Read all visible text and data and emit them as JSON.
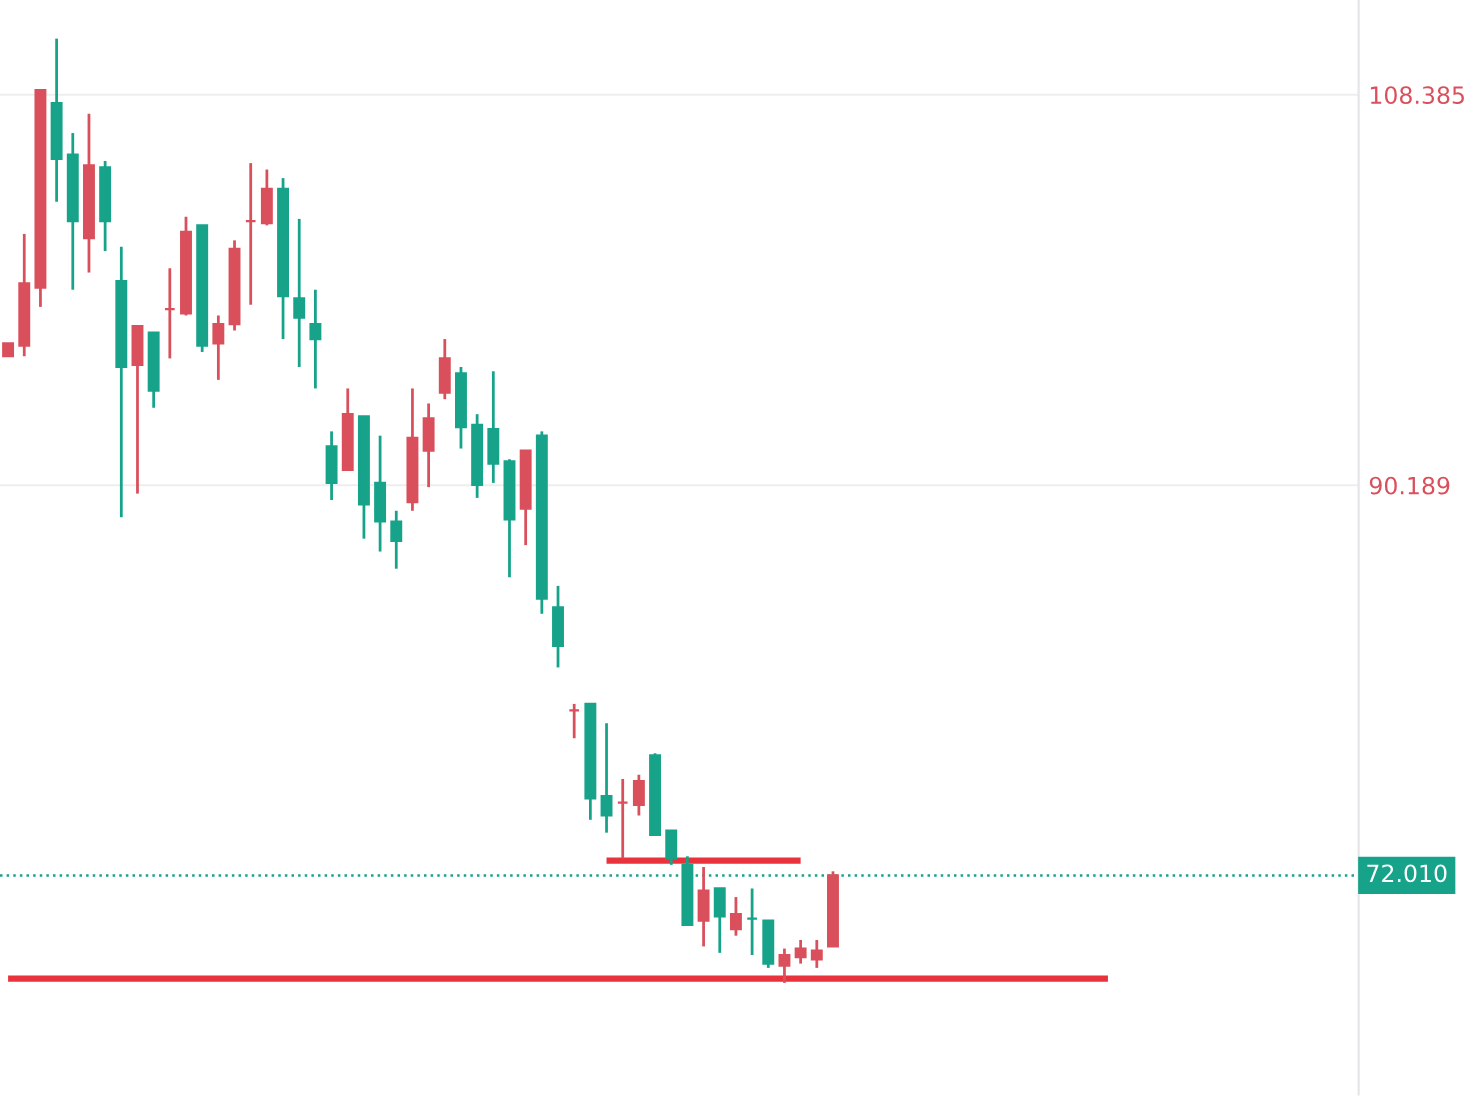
{
  "chart_data": {
    "type": "candlestick",
    "categories": [
      null,
      null,
      null,
      null,
      null,
      null,
      null,
      null,
      null,
      null,
      null,
      null,
      null,
      null,
      null,
      null,
      null,
      null,
      null,
      null,
      null,
      null,
      null,
      null,
      null,
      null,
      null,
      null,
      null,
      null,
      null,
      null,
      null,
      null,
      null,
      null,
      null,
      null,
      null,
      null,
      null,
      null,
      null,
      null,
      null,
      null,
      null,
      null,
      null,
      null,
      null,
      null,
      null,
      null,
      null,
      null,
      null,
      null,
      null,
      null,
      null,
      null,
      null,
      null,
      null,
      null,
      null,
      null,
      null,
      null,
      null,
      null,
      null,
      null,
      null,
      null,
      null,
      null,
      null,
      null,
      null,
      null,
      null,
      null
    ],
    "ohlc": [
      [
        96.2,
        96.8,
        96.2,
        96.8
      ],
      [
        96.7,
        101.9,
        96.2,
        99.6
      ],
      [
        99.4,
        108.6,
        98.5,
        108.6
      ],
      [
        108.0,
        111.0,
        103.4,
        105.4
      ],
      [
        105.6,
        106.6,
        99.3,
        102.5
      ],
      [
        101.7,
        107.5,
        100.1,
        105.1
      ],
      [
        105.0,
        105.3,
        101.1,
        102.5
      ],
      [
        99.7,
        101.3,
        88.7,
        95.7
      ],
      [
        95.8,
        97.6,
        89.8,
        97.6
      ],
      [
        97.3,
        97.3,
        93.8,
        94.6
      ],
      [
        98.4,
        100.3,
        96.1,
        98.4
      ],
      [
        98.2,
        102.7,
        98.1,
        102.0
      ],
      [
        102.3,
        102.3,
        96.4,
        96.7
      ],
      [
        96.8,
        98.1,
        95.1,
        97.7
      ],
      [
        97.7,
        101.6,
        97.4,
        101.2
      ],
      [
        102.5,
        105.2,
        98.6,
        102.5
      ],
      [
        102.4,
        104.9,
        102.3,
        104.0
      ],
      [
        104.0,
        104.5,
        97.0,
        99.0
      ],
      [
        98.9,
        102.6,
        95.7,
        98.0
      ],
      [
        97.7,
        99.3,
        94.7,
        97.0
      ],
      [
        92.0,
        92.7,
        89.5,
        90.3
      ],
      [
        90.9,
        94.7,
        90.9,
        93.5
      ],
      [
        93.4,
        93.4,
        87.7,
        89.3
      ],
      [
        90.3,
        92.5,
        87.1,
        88.5
      ],
      [
        88.5,
        89.0,
        86.3,
        87.6
      ],
      [
        89.4,
        94.7,
        89.0,
        92.4
      ],
      [
        91.8,
        94.0,
        90.1,
        93.3
      ],
      [
        94.5,
        97.0,
        94.2,
        96.1
      ],
      [
        95.4,
        95.7,
        91.9,
        92.9
      ],
      [
        93.0,
        93.5,
        89.6,
        90.2
      ],
      [
        92.8,
        95.5,
        90.3,
        91.2
      ],
      [
        91.3,
        91.4,
        85.9,
        88.6
      ],
      [
        89.1,
        91.8,
        87.4,
        91.8
      ],
      [
        92.5,
        92.7,
        84.2,
        84.9
      ],
      [
        84.5,
        85.5,
        81.7,
        82.7
      ],
      [
        79.7,
        80.0,
        78.4,
        79.7
      ],
      [
        80.0,
        80.0,
        74.6,
        75.6
      ],
      [
        75.7,
        79.1,
        74.0,
        74.8
      ],
      [
        75.4,
        76.5,
        72.8,
        75.4
      ],
      [
        75.3,
        76.7,
        74.8,
        76.4
      ],
      [
        77.6,
        77.7,
        73.9,
        73.9
      ],
      [
        74.1,
        74.1,
        72.5,
        72.8
      ],
      [
        72.5,
        72.9,
        69.7,
        69.7
      ],
      [
        69.9,
        72.4,
        68.7,
        71.3
      ],
      [
        71.4,
        71.4,
        68.4,
        70.1
      ],
      [
        69.5,
        71.0,
        69.2,
        70.2
      ],
      [
        70.0,
        71.4,
        68.3,
        70.0
      ],
      [
        69.9,
        69.9,
        67.7,
        67.9
      ],
      [
        67.8,
        68.6,
        67.0,
        68.3
      ],
      [
        68.2,
        69.0,
        67.9,
        68.6
      ],
      [
        68.1,
        69.0,
        67.7,
        68.5
      ],
      [
        68.7,
        72.2,
        68.7,
        72.01
      ],
      null,
      null,
      null,
      null,
      null,
      null,
      null,
      null,
      null,
      null,
      null,
      null,
      null,
      null,
      null,
      null,
      null,
      null,
      null,
      null,
      null,
      null,
      null,
      null,
      null,
      null,
      null,
      null,
      null,
      null,
      null,
      null
    ],
    "colors": [
      "#d9505c",
      "#d9505c",
      "#d9505c",
      "#17a38a",
      "#17a38a",
      "#d9505c",
      "#17a38a",
      "#17a38a",
      "#d9505c",
      "#17a38a",
      "#d9505c",
      "#d9505c",
      "#17a38a",
      "#d9505c",
      "#d9505c",
      "#d9505c",
      "#d9505c",
      "#17a38a",
      "#17a38a",
      "#17a38a",
      "#17a38a",
      "#d9505c",
      "#17a38a",
      "#17a38a",
      "#17a38a",
      "#d9505c",
      "#d9505c",
      "#d9505c",
      "#17a38a",
      "#17a38a",
      "#17a38a",
      "#17a38a",
      "#d9505c",
      "#17a38a",
      "#17a38a",
      "#d9505c",
      "#17a38a",
      "#17a38a",
      "#d9505c",
      "#d9505c",
      "#17a38a",
      "#17a38a",
      "#17a38a",
      "#d9505c",
      "#17a38a",
      "#d9505c",
      "#17a38a",
      "#17a38a",
      "#d9505c",
      "#d9505c",
      "#d9505c",
      "#d9505c",
      null,
      null,
      null,
      null,
      null,
      null,
      null,
      null,
      null,
      null,
      null,
      null,
      null,
      null,
      null,
      null,
      null,
      null,
      null,
      null,
      null,
      null,
      null,
      null,
      null,
      null,
      null,
      null,
      null,
      null,
      null,
      null
    ],
    "series": [
      {
        "type": "line",
        "color": "#e8323c",
        "values": [
          null,
          null,
          null,
          null,
          null,
          null,
          null,
          null,
          null,
          null,
          null,
          null,
          null,
          null,
          null,
          null,
          null,
          null,
          null,
          null,
          null,
          null,
          null,
          null,
          null,
          null,
          null,
          null,
          null,
          null,
          null,
          null,
          null,
          null,
          null,
          null,
          null,
          72.7,
          72.7,
          72.7,
          72.7,
          72.7,
          72.7,
          72.7,
          72.7,
          72.7,
          72.7,
          72.7,
          72.7,
          72.7,
          null,
          null,
          null,
          null,
          null,
          null,
          null,
          null,
          null,
          null,
          null,
          null,
          null,
          null,
          null,
          null,
          null,
          null,
          null,
          null,
          null,
          null,
          null,
          null,
          null,
          null,
          null,
          null,
          null,
          null,
          null,
          null,
          null,
          null
        ]
      },
      {
        "type": "line",
        "color": "#e8323c",
        "values": [
          67.2,
          67.2,
          67.2,
          67.2,
          67.2,
          67.2,
          67.2,
          67.2,
          67.2,
          67.2,
          67.2,
          67.2,
          67.2,
          67.2,
          67.2,
          67.2,
          67.2,
          67.2,
          67.2,
          67.2,
          67.2,
          67.2,
          67.2,
          67.2,
          67.2,
          67.2,
          67.2,
          67.2,
          67.2,
          67.2,
          67.2,
          67.2,
          67.2,
          67.2,
          67.2,
          67.2,
          67.2,
          67.2,
          67.2,
          67.2,
          67.2,
          67.2,
          67.2,
          67.2,
          67.2,
          67.2,
          67.2,
          67.2,
          67.2,
          67.2,
          67.2,
          67.2,
          67.2,
          67.2,
          67.2,
          67.2,
          67.2,
          67.2,
          67.2,
          67.2,
          67.2,
          67.2,
          67.2,
          67.2,
          67.2,
          67.2,
          67.2,
          67.2,
          67.2,
          null,
          null,
          null,
          null,
          null,
          null,
          null,
          null,
          null,
          null,
          null,
          null,
          null,
          null,
          null
        ]
      }
    ],
    "ylim": [
      61.8,
      112.8
    ],
    "yticks": [
      108.385,
      90.189
    ],
    "ref_lines": [
      {
        "axis": "y",
        "value": 72.01,
        "label": "72.010",
        "color": "#17a38a",
        "line_style": "dotted"
      }
    ],
    "grid": "y",
    "tick_labels": "y"
  }
}
